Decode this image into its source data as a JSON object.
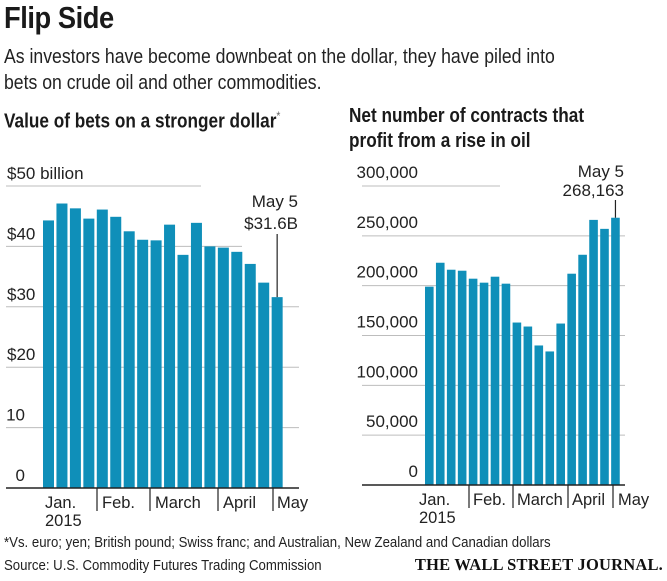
{
  "header": {
    "title": "Flip Side",
    "subtitle_line1": "As investors have become downbeat on the dollar, they have piled into",
    "subtitle_line2": "bets on crude oil and other commodities."
  },
  "chart_data": [
    {
      "type": "bar",
      "title": "Value of bets on a stronger dollar",
      "title_footnote_mark": "*",
      "xlabel": "",
      "ylabel": "",
      "unit": "billion USD",
      "ylim": [
        0,
        50
      ],
      "grid": true,
      "y_ticks": [
        {
          "value": 50,
          "label": "$50 billion"
        },
        {
          "value": 40,
          "label": "$40"
        },
        {
          "value": 30,
          "label": "$30"
        },
        {
          "value": 20,
          "label": "$20"
        },
        {
          "value": 10,
          "label": "10"
        },
        {
          "value": 0,
          "label": "0"
        }
      ],
      "x_month_labels": [
        {
          "label": "Jan.",
          "sublabel": "2015"
        },
        {
          "label": "Feb.",
          "sublabel": ""
        },
        {
          "label": "March",
          "sublabel": ""
        },
        {
          "label": "April",
          "sublabel": ""
        },
        {
          "label": "May",
          "sublabel": ""
        }
      ],
      "month_start_bar_index": [
        0,
        4,
        8,
        13,
        17
      ],
      "values": [
        44.3,
        47.1,
        46.3,
        44.6,
        46.1,
        44.9,
        42.5,
        41.1,
        41.0,
        43.6,
        38.6,
        43.9,
        40.0,
        39.8,
        39.1,
        37.1,
        34.0,
        31.6
      ],
      "annotation": {
        "line1": "May 5",
        "line2": "$31.6B",
        "bar_index": 17
      },
      "bar_color": "#0f8fb9"
    },
    {
      "type": "bar",
      "title": "Net number of contracts that profit from a rise in oil",
      "title_line1": "Net number of contracts that",
      "title_line2": "profit from a rise in oil",
      "xlabel": "",
      "ylabel": "",
      "unit": "contracts",
      "ylim": [
        0,
        300000
      ],
      "grid": true,
      "y_ticks": [
        {
          "value": 300000,
          "label": "300,000"
        },
        {
          "value": 250000,
          "label": "250,000"
        },
        {
          "value": 200000,
          "label": "200,000"
        },
        {
          "value": 150000,
          "label": "150,000"
        },
        {
          "value": 100000,
          "label": "100,000"
        },
        {
          "value": 50000,
          "label": "50,000"
        },
        {
          "value": 0,
          "label": "0"
        }
      ],
      "x_month_labels": [
        {
          "label": "Jan.",
          "sublabel": "2015"
        },
        {
          "label": "Feb.",
          "sublabel": ""
        },
        {
          "label": "March",
          "sublabel": ""
        },
        {
          "label": "April",
          "sublabel": ""
        },
        {
          "label": "May",
          "sublabel": ""
        }
      ],
      "month_start_bar_index": [
        0,
        4,
        8,
        13,
        17
      ],
      "values": [
        199000,
        223000,
        216000,
        215000,
        207000,
        203000,
        209000,
        202000,
        163000,
        159000,
        140000,
        134000,
        162000,
        212000,
        231000,
        266000,
        257000,
        268163
      ],
      "annotation": {
        "line1": "May 5",
        "line2": "268,163",
        "bar_index": 17
      },
      "bar_color": "#0f8fb9"
    }
  ],
  "footer": {
    "footnote": "*Vs. euro; yen; British pound; Swiss franc; and Australian, New Zealand and Canadian dollars",
    "source": "Source: U.S. Commodity Futures Trading Commission",
    "brand": "THE WALL STREET JOURNAL."
  }
}
